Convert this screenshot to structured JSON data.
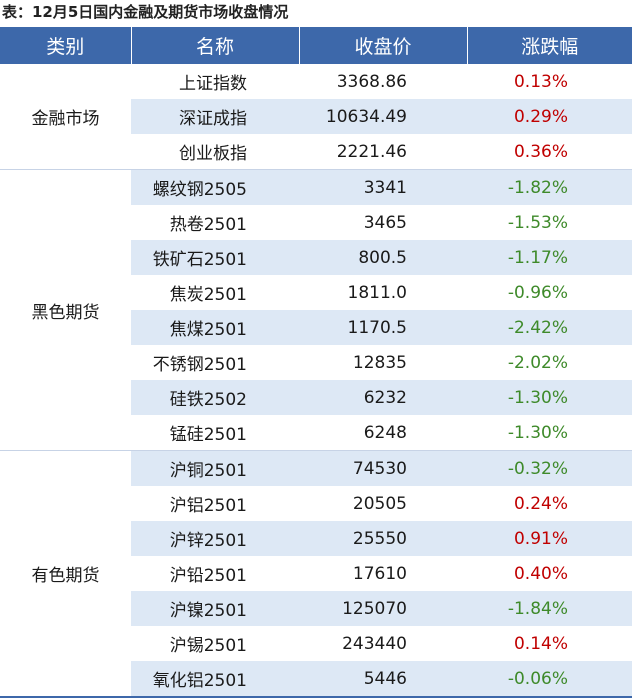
{
  "caption": "表：12月5日国内金融及期货市场收盘情况",
  "headers": [
    "类别",
    "名称",
    "收盘价",
    "涨跌幅"
  ],
  "groups": [
    {
      "category": "金融市场",
      "rows": [
        {
          "name": "上证指数",
          "price": "3368.86",
          "change": "0.13%"
        },
        {
          "name": "深证成指",
          "price": "10634.49",
          "change": "0.29%"
        },
        {
          "name": "创业板指",
          "price": "2221.46",
          "change": "0.36%"
        }
      ]
    },
    {
      "category": "黑色期货",
      "rows": [
        {
          "name": "螺纹钢2505",
          "price": "3341",
          "change": "-1.82%"
        },
        {
          "name": "热卷2501",
          "price": "3465",
          "change": "-1.53%"
        },
        {
          "name": "铁矿石2501",
          "price": "800.5",
          "change": "-1.17%"
        },
        {
          "name": "焦炭2501",
          "price": "1811.0",
          "change": "-0.96%"
        },
        {
          "name": "焦煤2501",
          "price": "1170.5",
          "change": "-2.42%"
        },
        {
          "name": "不锈钢2501",
          "price": "12835",
          "change": "-2.02%"
        },
        {
          "name": "硅铁2502",
          "price": "6232",
          "change": "-1.30%"
        },
        {
          "name": "锰硅2501",
          "price": "6248",
          "change": "-1.30%"
        }
      ]
    },
    {
      "category": "有色期货",
      "rows": [
        {
          "name": "沪铜2501",
          "price": "74530",
          "change": "-0.32%"
        },
        {
          "name": "沪铝2501",
          "price": "20505",
          "change": "0.24%"
        },
        {
          "name": "沪锌2501",
          "price": "25550",
          "change": "0.91%"
        },
        {
          "name": "沪铅2501",
          "price": "17610",
          "change": "0.40%"
        },
        {
          "name": "沪镍2501",
          "price": "125070",
          "change": "-1.84%"
        },
        {
          "name": "沪锡2501",
          "price": "243440",
          "change": "0.14%"
        },
        {
          "name": "氧化铝2501",
          "price": "5446",
          "change": "-0.06%"
        }
      ]
    }
  ],
  "colors": {
    "header_bg": "#3d68aa",
    "stripe": "#dde8f5",
    "up": "#c00000",
    "down": "#3e8a2a"
  }
}
